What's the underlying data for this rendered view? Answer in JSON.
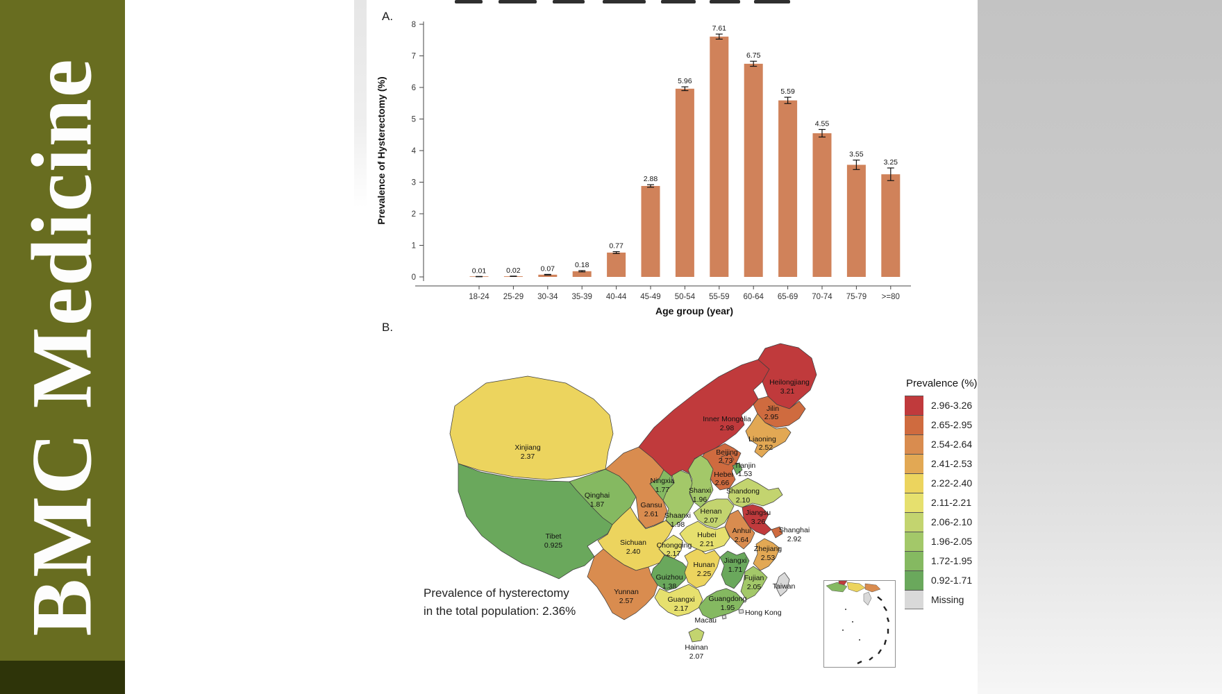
{
  "sidebar": {
    "journal_name": "BMC Medicine",
    "bg_color": "#686d20",
    "footer_color": "#2e3409"
  },
  "figure": {
    "panel_a_label": "A.",
    "panel_b_label": "B."
  },
  "map_note": {
    "line1": "Prevalence of hysterectomy",
    "line2": "in the total population: 2.36%"
  },
  "legend": {
    "title": "Prevalence (%)",
    "position": "right",
    "items": [
      {
        "range": "2.96-3.26",
        "color": "#c03a3c"
      },
      {
        "range": "2.65-2.95",
        "color": "#cf6b3f"
      },
      {
        "range": "2.54-2.64",
        "color": "#d98c4f"
      },
      {
        "range": "2.41-2.53",
        "color": "#e2a854"
      },
      {
        "range": "2.22-2.40",
        "color": "#ecd45e"
      },
      {
        "range": "2.11-2.21",
        "color": "#e6e06e"
      },
      {
        "range": "2.06-2.10",
        "color": "#c3d46f"
      },
      {
        "range": "1.96-2.05",
        "color": "#a3c869"
      },
      {
        "range": "1.72-1.95",
        "color": "#85b961"
      },
      {
        "range": "0.92-1.71",
        "color": "#6aa85c"
      },
      {
        "range": "Missing",
        "color": "#d9d9d9"
      }
    ]
  },
  "chart_data": [
    {
      "type": "bar",
      "panel": "A.",
      "title": "",
      "categories": [
        "18-24",
        "25-29",
        "30-34",
        "35-39",
        "40-44",
        "45-49",
        "50-54",
        "55-59",
        "60-64",
        "65-69",
        "70-74",
        "75-79",
        ">=80"
      ],
      "values": [
        0.01,
        0.02,
        0.07,
        0.18,
        0.77,
        2.88,
        5.96,
        7.61,
        6.75,
        5.59,
        4.55,
        3.55,
        3.25
      ],
      "errors": [
        0.005,
        0.005,
        0.01,
        0.02,
        0.03,
        0.04,
        0.06,
        0.08,
        0.08,
        0.1,
        0.12,
        0.15,
        0.2
      ],
      "xlabel": "Age group (year)",
      "ylabel": "Prevalence of Hysterectomy (%)",
      "ylim": [
        0,
        8
      ],
      "yticks": [
        0,
        1,
        2,
        3,
        4,
        5,
        6,
        7,
        8
      ],
      "grid": false,
      "bar_color": "#d0825a",
      "error_bar_color": "#111111"
    },
    {
      "type": "heatmap",
      "subtype": "choropleth-map-of-china",
      "panel": "B.",
      "legend_title": "Prevalence (%)",
      "note": "Prevalence of hysterectomy in the total population: 2.36%",
      "regions": [
        {
          "id": "xinjiang",
          "name": "Xinjiang",
          "value": "2.37",
          "color": "#ecd45e"
        },
        {
          "id": "tibet",
          "name": "Tibet",
          "value": "0.925",
          "color": "#6aa85c"
        },
        {
          "id": "qinghai",
          "name": "Qinghai",
          "value": "1.87",
          "color": "#85b961"
        },
        {
          "id": "gansu",
          "name": "Gansu",
          "value": "2.61",
          "color": "#d98c4f"
        },
        {
          "id": "ningxia",
          "name": "Ningxia",
          "value": "1.77",
          "color": "#85b961"
        },
        {
          "id": "inner_mongolia",
          "name": "Inner Mongolia",
          "value": "2.98",
          "color": "#c03a3c"
        },
        {
          "id": "heilongjiang",
          "name": "Heilongjiang",
          "value": "3.21",
          "color": "#c03a3c"
        },
        {
          "id": "jilin",
          "name": "Jilin",
          "value": "2.95",
          "color": "#cf6b3f"
        },
        {
          "id": "liaoning",
          "name": "Liaoning",
          "value": "2.52",
          "color": "#e2a854"
        },
        {
          "id": "hebei",
          "name": "Hebei",
          "value": "2.66",
          "color": "#cf6b3f"
        },
        {
          "id": "shanxi",
          "name": "Shanxi",
          "value": "1.96",
          "color": "#a3c869"
        },
        {
          "id": "shaanxi",
          "name": "Shaanxi",
          "value": "1.98",
          "color": "#a3c869"
        },
        {
          "id": "sichuan",
          "name": "Sichuan",
          "value": "2.40",
          "color": "#ecd45e"
        },
        {
          "id": "chongqing",
          "name": "Chongqing",
          "value": "2.17",
          "color": "#e6e06e"
        },
        {
          "id": "yunnan",
          "name": "Yunnan",
          "value": "2.57",
          "color": "#d98c4f"
        },
        {
          "id": "guizhou",
          "name": "Guizhou",
          "value": "1.38",
          "color": "#6aa85c"
        },
        {
          "id": "hunan",
          "name": "Hunan",
          "value": "2.25",
          "color": "#ecd45e"
        },
        {
          "id": "hubei",
          "name": "Hubei",
          "value": "2.21",
          "color": "#e6e06e"
        },
        {
          "id": "henan",
          "name": "Henan",
          "value": "2.07",
          "color": "#c3d46f"
        },
        {
          "id": "shandong",
          "name": "Shandong",
          "value": "2.10",
          "color": "#c3d46f"
        },
        {
          "id": "jiangsu",
          "name": "Jiangsu",
          "value": "3.26",
          "color": "#c03a3c"
        },
        {
          "id": "anhui",
          "name": "Anhui",
          "value": "2.64",
          "color": "#d98c4f"
        },
        {
          "id": "shanghai",
          "name": "Shanghai",
          "value": "2.92",
          "color": "#cf6b3f"
        },
        {
          "id": "zhejiang",
          "name": "Zhejiang",
          "value": "2.53",
          "color": "#e2a854"
        },
        {
          "id": "jiangxi",
          "name": "Jiangxi",
          "value": "1.71",
          "color": "#6aa85c"
        },
        {
          "id": "fujian",
          "name": "Fujian",
          "value": "2.05",
          "color": "#a3c869"
        },
        {
          "id": "guangdong",
          "name": "Guangdong",
          "value": "1.95",
          "color": "#85b961"
        },
        {
          "id": "guangxi",
          "name": "Guangxi",
          "value": "2.17",
          "color": "#e6e06e"
        },
        {
          "id": "hainan",
          "name": "Hainan",
          "value": "2.07",
          "color": "#c3d46f"
        },
        {
          "id": "beijing",
          "name": "Beijing",
          "value": "2.73",
          "color": "#cf6b3f"
        },
        {
          "id": "tianjin",
          "name": "Tianjin",
          "value": "1.53",
          "color": "#6aa85c"
        },
        {
          "id": "taiwan",
          "name": "Taiwan",
          "value": "",
          "color": "#d9d9d9"
        },
        {
          "id": "hong_kong",
          "name": "Hong Kong",
          "value": "",
          "color": "#d9d9d9"
        },
        {
          "id": "macau",
          "name": "Macau",
          "value": "",
          "color": "#d9d9d9"
        }
      ],
      "missing_regions": [
        "Taiwan",
        "Hong Kong",
        "Macau"
      ]
    }
  ]
}
